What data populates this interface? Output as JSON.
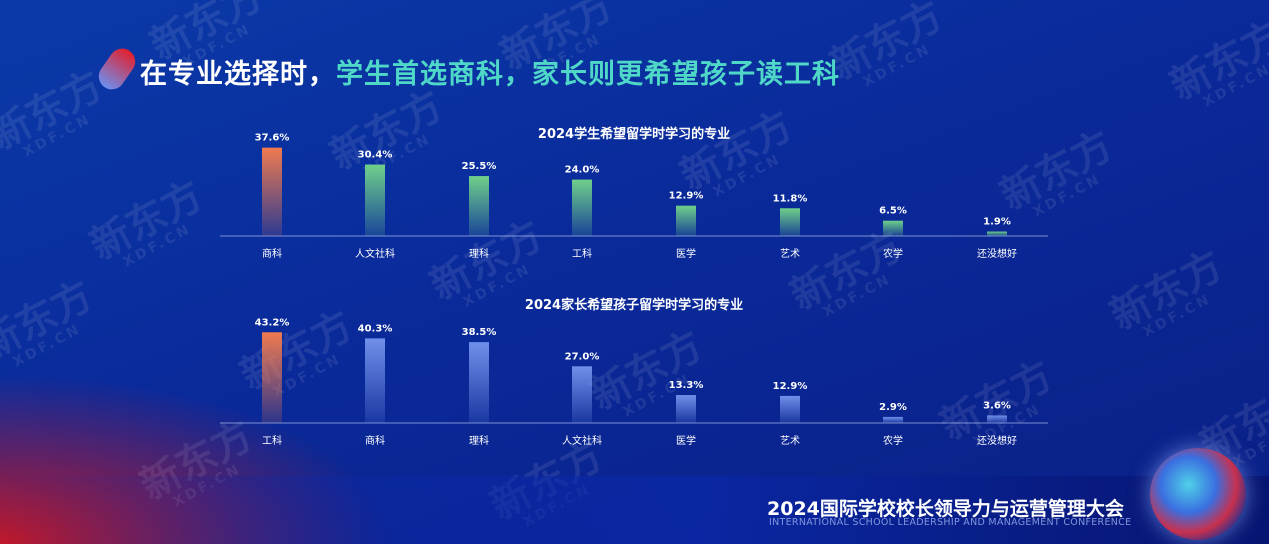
{
  "header": {
    "title_part1": "在专业选择时，",
    "title_highlight": "学生首选商科，家长则更希望孩子读工科"
  },
  "watermark": {
    "text": "新东方",
    "sub": "XDF.CN"
  },
  "footer": {
    "conference_title": "2024国际学校校长领导力与运营管理大会",
    "conference_subtitle": "INTERNATIONAL SCHOOL LEADERSHIP AND MANAGEMENT CONFERENCE"
  },
  "colors": {
    "highlight": "#4fd8c8",
    "top_bar": "#f07a4f",
    "chart1_bar": "#6fd08a",
    "chart2_bar": "#7090ea"
  },
  "chart_data": [
    {
      "type": "bar",
      "title": "2024学生希望留学时学习的专业",
      "categories": [
        "商科",
        "人文社科",
        "理科",
        "工科",
        "医学",
        "艺术",
        "农学",
        "还没想好"
      ],
      "values": [
        37.6,
        30.4,
        25.5,
        24.0,
        12.9,
        11.8,
        6.5,
        1.9
      ],
      "labels": [
        "37.6%",
        "30.4%",
        "25.5%",
        "24.0%",
        "12.9%",
        "11.8%",
        "6.5%",
        "1.9%"
      ],
      "unit": "%",
      "grid": false
    },
    {
      "type": "bar",
      "title": "2024家长希望孩子留学时学习的专业",
      "categories": [
        "工科",
        "商科",
        "理科",
        "人文社科",
        "医学",
        "艺术",
        "农学",
        "还没想好"
      ],
      "values": [
        43.2,
        40.3,
        38.5,
        27.0,
        13.3,
        12.9,
        2.9,
        3.6
      ],
      "labels": [
        "43.2%",
        "40.3%",
        "38.5%",
        "27.0%",
        "13.3%",
        "12.9%",
        "2.9%",
        "3.6%"
      ],
      "unit": "%",
      "grid": false
    }
  ]
}
